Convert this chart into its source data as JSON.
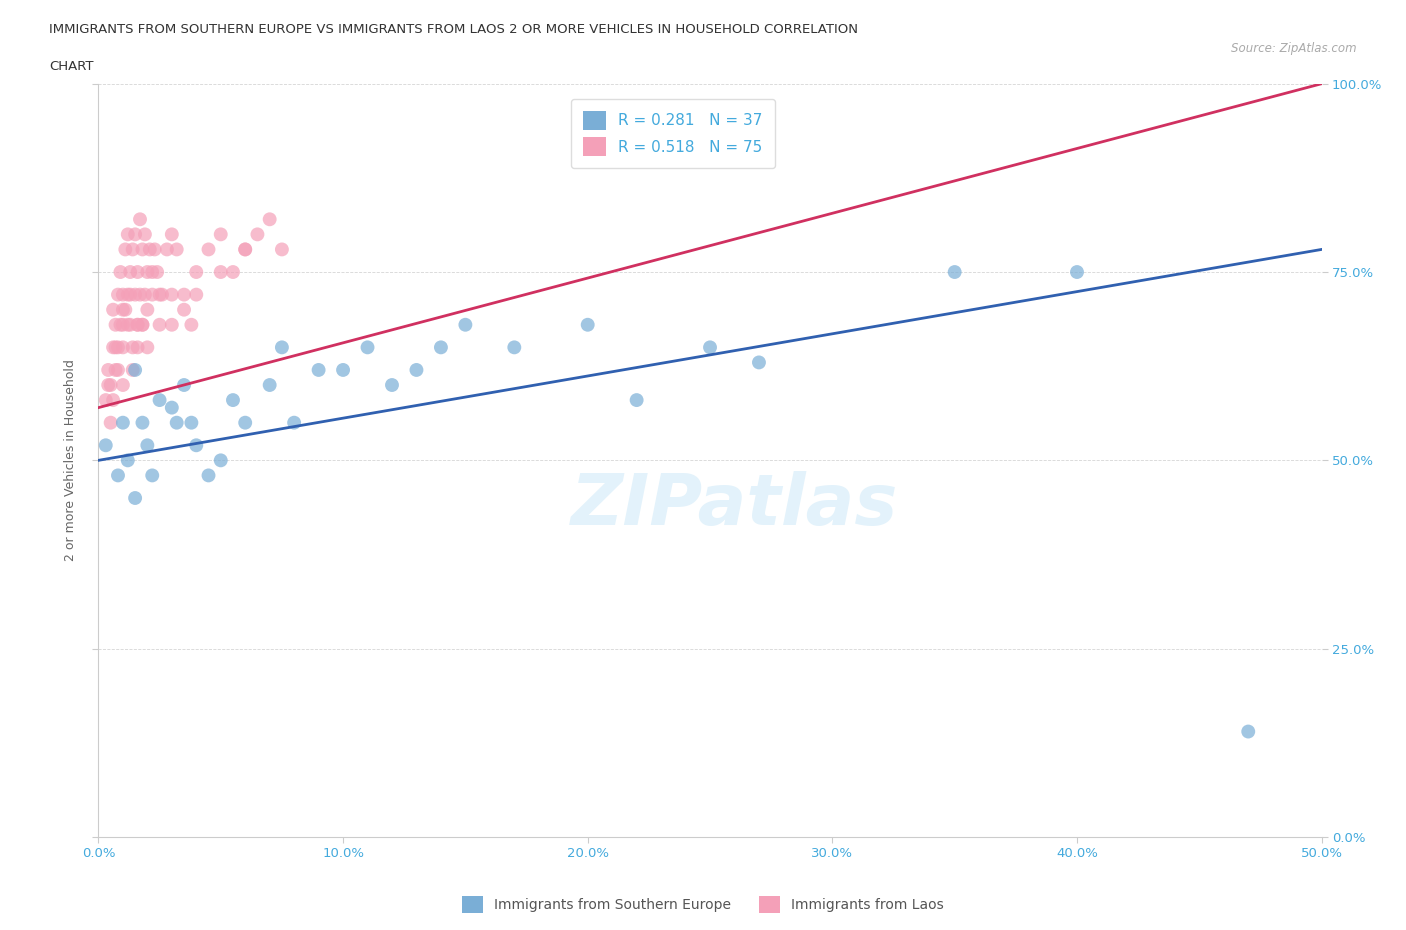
{
  "title_line1": "IMMIGRANTS FROM SOUTHERN EUROPE VS IMMIGRANTS FROM LAOS 2 OR MORE VEHICLES IN HOUSEHOLD CORRELATION",
  "title_line2": "CHART",
  "source": "Source: ZipAtlas.com",
  "xlim": [
    0,
    50
  ],
  "ylim": [
    0,
    100
  ],
  "watermark": "ZIPatlas",
  "legend_blue_r": "0.281",
  "legend_blue_n": "37",
  "legend_pink_r": "0.518",
  "legend_pink_n": "75",
  "legend_label_blue": "Immigrants from Southern Europe",
  "legend_label_pink": "Immigrants from Laos",
  "blue_color": "#7aaed6",
  "pink_color": "#f4a0b8",
  "blue_line_color": "#3060b0",
  "pink_line_color": "#d03060",
  "axis_label_color": "#44aadd",
  "ylabel": "2 or more Vehicles in Household",
  "blue_scatter_x": [
    0.3,
    0.8,
    1.0,
    1.2,
    1.5,
    1.5,
    1.8,
    2.0,
    2.2,
    2.5,
    3.0,
    3.2,
    3.5,
    3.8,
    4.0,
    4.5,
    5.0,
    5.5,
    6.0,
    7.0,
    7.5,
    8.0,
    9.0,
    10.0,
    11.0,
    12.0,
    13.0,
    14.0,
    15.0,
    17.0,
    20.0,
    22.0,
    25.0,
    35.0,
    40.0,
    47.0,
    27.0
  ],
  "blue_scatter_y": [
    52,
    48,
    55,
    50,
    62,
    45,
    55,
    52,
    48,
    58,
    57,
    55,
    60,
    55,
    52,
    48,
    50,
    58,
    55,
    60,
    65,
    55,
    62,
    62,
    65,
    60,
    62,
    65,
    68,
    65,
    68,
    58,
    65,
    75,
    75,
    14,
    63
  ],
  "pink_scatter_x": [
    0.3,
    0.4,
    0.5,
    0.6,
    0.6,
    0.7,
    0.7,
    0.8,
    0.8,
    0.9,
    0.9,
    1.0,
    1.0,
    1.0,
    1.1,
    1.1,
    1.2,
    1.2,
    1.3,
    1.3,
    1.4,
    1.4,
    1.5,
    1.5,
    1.6,
    1.6,
    1.7,
    1.7,
    1.8,
    1.8,
    1.9,
    2.0,
    2.0,
    2.1,
    2.2,
    2.3,
    2.4,
    2.5,
    2.6,
    2.8,
    3.0,
    3.0,
    3.2,
    3.5,
    3.8,
    4.0,
    4.5,
    5.0,
    5.5,
    6.0,
    6.5,
    7.0,
    7.5,
    0.5,
    0.6,
    0.8,
    1.0,
    1.2,
    1.4,
    1.6,
    1.8,
    2.0,
    2.5,
    3.0,
    3.5,
    4.0,
    5.0,
    6.0,
    0.4,
    0.7,
    1.0,
    1.3,
    1.6,
    1.9,
    2.2
  ],
  "pink_scatter_y": [
    58,
    62,
    60,
    65,
    70,
    68,
    62,
    72,
    65,
    68,
    75,
    60,
    68,
    72,
    70,
    78,
    72,
    80,
    68,
    75,
    78,
    65,
    72,
    80,
    75,
    68,
    82,
    72,
    78,
    68,
    80,
    75,
    65,
    78,
    72,
    78,
    75,
    68,
    72,
    78,
    72,
    80,
    78,
    72,
    68,
    75,
    78,
    80,
    75,
    78,
    80,
    82,
    78,
    55,
    58,
    62,
    65,
    68,
    62,
    65,
    68,
    70,
    72,
    68,
    70,
    72,
    75,
    78,
    60,
    65,
    70,
    72,
    68,
    72,
    75
  ],
  "pink_line_x0": 0,
  "pink_line_y0": 57,
  "pink_line_x1": 50,
  "pink_line_y1": 100,
  "blue_line_x0": 0,
  "blue_line_y0": 50,
  "blue_line_x1": 50,
  "blue_line_y1": 78
}
